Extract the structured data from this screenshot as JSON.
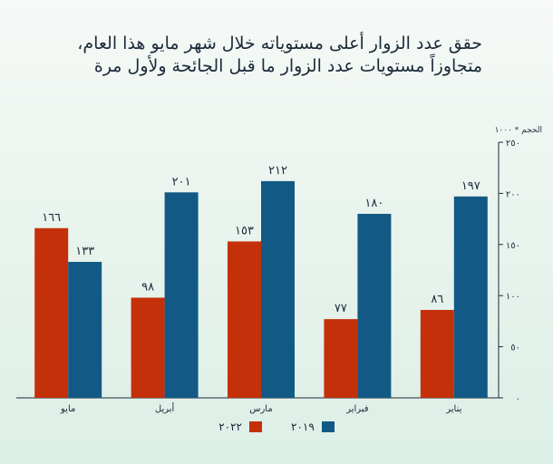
{
  "title_lines": [
    "حقق عدد الزوار أعلى مستوياته خلال شهر مايو هذا العام،",
    "متجاوزاً مستويات عدد الزوار ما قبل الجائحة ولأول مرة"
  ],
  "colors": {
    "series_2022": "#c4300a",
    "series_2019": "#125a85",
    "axis": "#1b2a3a"
  },
  "chart_data": {
    "type": "bar",
    "title": "حقق عدد الزوار أعلى مستوياته خلال شهر مايو هذا العام، متجاوزاً مستويات عدد الزوار ما قبل الجائحة ولأول مرة",
    "ylabel": "الحجم * ١٠٠٠",
    "ylim": [
      0,
      250
    ],
    "y_ticks": [
      0,
      50,
      100,
      150,
      200,
      250
    ],
    "y_tick_labels": [
      "٠",
      "٥٠",
      "١٠٠",
      "١٥٠",
      "٢٠٠",
      "٢٥٠"
    ],
    "axis_side": "right",
    "categories": [
      "يناير",
      "فبراير",
      "مارس",
      "أبريل",
      "مايو"
    ],
    "series": [
      {
        "name": "٢٠١٩",
        "values": [
          197,
          180,
          212,
          201,
          133
        ],
        "labels": [
          "١٩٧",
          "١٨٠",
          "٢١٢",
          "٢٠١",
          "١٣٣"
        ]
      },
      {
        "name": "٢٠٢٢",
        "values": [
          86,
          77,
          153,
          98,
          166
        ],
        "labels": [
          "٨٦",
          "٧٧",
          "١٥٣",
          "٩٨",
          "١٦٦"
        ]
      }
    ],
    "legend_position": "bottom",
    "grid": false
  }
}
